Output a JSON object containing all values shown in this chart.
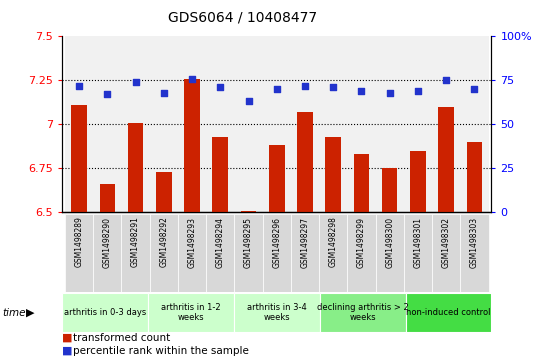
{
  "title": "GDS6064 / 10408477",
  "samples": [
    "GSM1498289",
    "GSM1498290",
    "GSM1498291",
    "GSM1498292",
    "GSM1498293",
    "GSM1498294",
    "GSM1498295",
    "GSM1498296",
    "GSM1498297",
    "GSM1498298",
    "GSM1498299",
    "GSM1498300",
    "GSM1498301",
    "GSM1498302",
    "GSM1498303"
  ],
  "transformed_count": [
    7.11,
    6.66,
    7.01,
    6.73,
    7.26,
    6.93,
    6.51,
    6.88,
    7.07,
    6.93,
    6.83,
    6.75,
    6.85,
    7.1,
    6.9
  ],
  "percentile_rank": [
    72,
    67,
    74,
    68,
    76,
    71,
    63,
    70,
    72,
    71,
    69,
    68,
    69,
    75,
    70
  ],
  "groups": [
    {
      "label": "arthritis in 0-3 days",
      "start": 0,
      "end": 3,
      "color": "#ccffcc"
    },
    {
      "label": "arthritis in 1-2\nweeks",
      "start": 3,
      "end": 6,
      "color": "#ccffcc"
    },
    {
      "label": "arthritis in 3-4\nweeks",
      "start": 6,
      "end": 9,
      "color": "#ccffcc"
    },
    {
      "label": "declining arthritis > 2\nweeks",
      "start": 9,
      "end": 12,
      "color": "#88ee88"
    },
    {
      "label": "non-induced control",
      "start": 12,
      "end": 15,
      "color": "#44dd44"
    }
  ],
  "bar_color": "#cc2200",
  "dot_color": "#2233cc",
  "ylim_left": [
    6.5,
    7.5
  ],
  "ylim_right": [
    0,
    100
  ],
  "yticks_left": [
    6.5,
    6.75,
    7.0,
    7.25,
    7.5
  ],
  "ytick_labels_left": [
    "6.5",
    "6.75",
    "7",
    "7.25",
    "7.5"
  ],
  "yticks_right": [
    0,
    25,
    50,
    75,
    100
  ],
  "ytick_labels_right": [
    "0",
    "25",
    "50",
    "75",
    "100%"
  ],
  "hlines": [
    6.75,
    7.0,
    7.25
  ],
  "group_bg_gray": "#d8d8d8",
  "group_colors": [
    "#ccffcc",
    "#ccffcc",
    "#ccffcc",
    "#88ee88",
    "#44dd44"
  ]
}
